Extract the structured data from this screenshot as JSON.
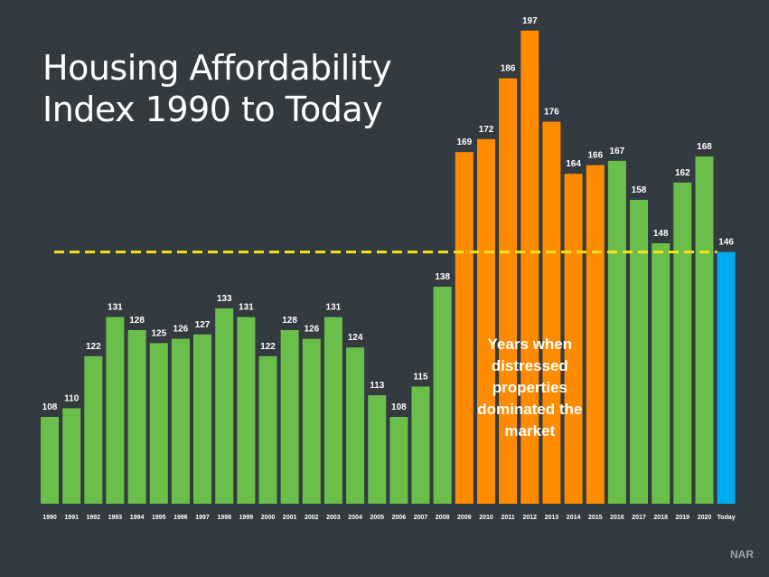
{
  "title": {
    "line1": "Housing Affordability",
    "line2": "Index 1990 to Today"
  },
  "source": "NAR",
  "annotation": {
    "lines": [
      "Years when",
      "distressed",
      "properties",
      "dominated the",
      "market"
    ],
    "color": "#ffffff"
  },
  "colors": {
    "background": "#333a40",
    "normal": "#6abf4b",
    "distressed": "#ff8c00",
    "today": "#00aaee",
    "reference_line": "#f5e21b"
  },
  "chart_data": {
    "type": "bar",
    "categories": [
      "1990",
      "1991",
      "1992",
      "1993",
      "1994",
      "1995",
      "1996",
      "1997",
      "1998",
      "1999",
      "2000",
      "2001",
      "2002",
      "2003",
      "2004",
      "2005",
      "2006",
      "2007",
      "2008",
      "2009",
      "2010",
      "2011",
      "2012",
      "2013",
      "2014",
      "2015",
      "2016",
      "2017",
      "2018",
      "2019",
      "2020",
      "Today"
    ],
    "values": [
      108,
      110,
      122,
      131,
      128,
      125,
      126,
      127,
      133,
      131,
      122,
      128,
      126,
      131,
      124,
      113,
      108,
      115,
      138,
      169,
      172,
      186,
      197,
      176,
      164,
      166,
      167,
      158,
      148,
      162,
      168,
      146
    ],
    "bar_groups": [
      "normal",
      "normal",
      "normal",
      "normal",
      "normal",
      "normal",
      "normal",
      "normal",
      "normal",
      "normal",
      "normal",
      "normal",
      "normal",
      "normal",
      "normal",
      "normal",
      "normal",
      "normal",
      "normal",
      "distressed",
      "distressed",
      "distressed",
      "distressed",
      "distressed",
      "distressed",
      "distressed",
      "normal",
      "normal",
      "normal",
      "normal",
      "normal",
      "today"
    ],
    "reference_line": {
      "value": 146,
      "style": "dashed"
    },
    "ylim": [
      88,
      200
    ],
    "grid": false,
    "legend": "none"
  }
}
